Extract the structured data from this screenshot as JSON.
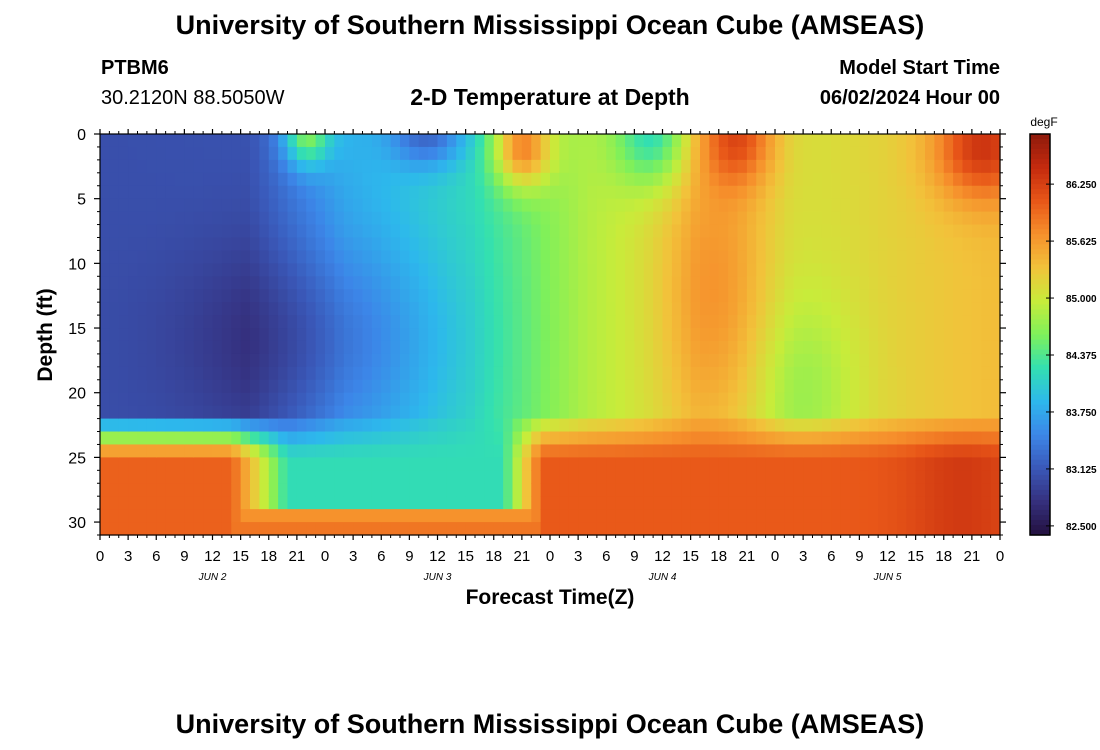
{
  "page_title": "University of Southern Mississippi Ocean Cube (AMSEAS)",
  "footer_title": "University of Southern Mississippi Ocean Cube (AMSEAS)",
  "station": {
    "id": "PTBM6",
    "coords": "30.2120N  88.5050W"
  },
  "model": {
    "start_label": "Model Start Time",
    "start_value": "06/02/2024 Hour 00"
  },
  "chart_data": {
    "type": "heatmap",
    "title": "2-D Temperature at Depth",
    "xlabel": "Forecast Time(Z)",
    "ylabel": "Depth (ft)",
    "x_tick_labels": [
      "0",
      "3",
      "6",
      "9",
      "12",
      "15",
      "18",
      "21",
      "0",
      "3",
      "6",
      "9",
      "12",
      "15",
      "18",
      "21",
      "0",
      "3",
      "6",
      "9",
      "12",
      "15",
      "18",
      "21",
      "0",
      "3",
      "6",
      "9",
      "12",
      "15",
      "18",
      "21",
      "0"
    ],
    "date_labels": [
      "JUN 2",
      "JUN 3",
      "JUN 4",
      "JUN 5"
    ],
    "x_hours": [
      0,
      96
    ],
    "y_ticks": [
      0,
      5,
      10,
      15,
      20,
      25,
      30
    ],
    "y_range": [
      0,
      31
    ],
    "colorbar": {
      "unit": "degF",
      "ticks": [
        "86.250",
        "85.625",
        "85.000",
        "84.375",
        "83.750",
        "83.125",
        "82.500"
      ],
      "range": [
        82.4,
        86.8
      ],
      "colors": [
        "#23103e",
        "#35307e",
        "#3a58b8",
        "#3c86e8",
        "#2db8ec",
        "#33e0b0",
        "#7ff05a",
        "#c8ec3a",
        "#f2c23a",
        "#f6902c",
        "#e85618",
        "#c42a0e",
        "#8e1a0c"
      ]
    },
    "grid": false
  }
}
